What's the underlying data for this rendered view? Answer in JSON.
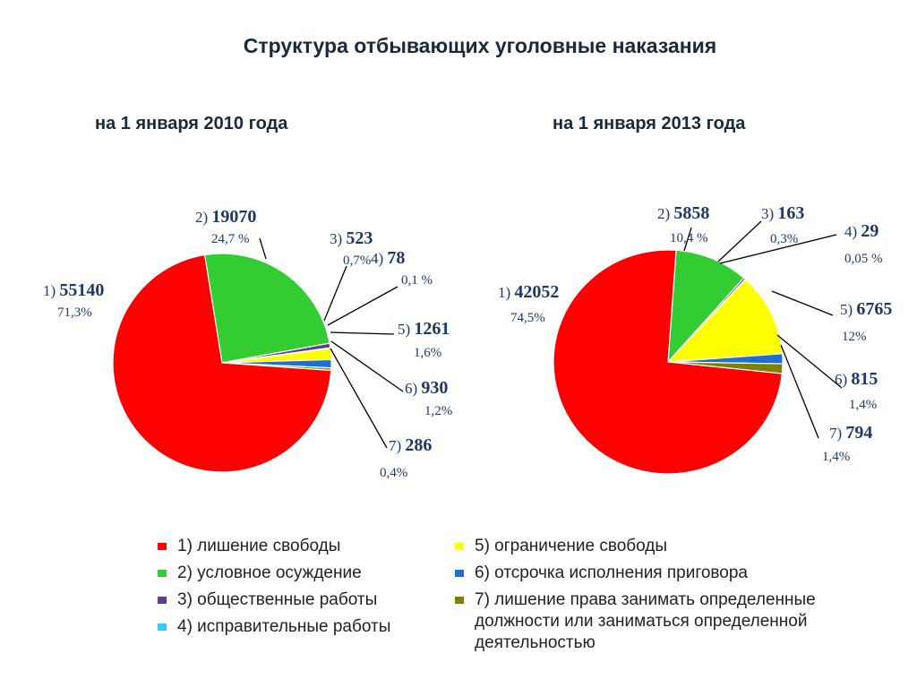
{
  "title": "Структура отбывающих уголовные наказания",
  "chart_data": [
    {
      "type": "pie",
      "title": "на 1 января 2010 года",
      "slices": [
        {
          "index": 1,
          "label": "1)",
          "value": 55140,
          "value_text": "55140",
          "percent_text": "71,3%",
          "color": "#ff0000"
        },
        {
          "index": 2,
          "label": "2)",
          "value": 19070,
          "value_text": "19070",
          "percent_text": "24,7 %",
          "color": "#33cc33"
        },
        {
          "index": 3,
          "label": "3)",
          "value": 523,
          "value_text": "523",
          "percent_text": "0,7%",
          "color": "#5b3f8c"
        },
        {
          "index": 4,
          "label": "4)",
          "value": 78,
          "value_text": "78",
          "percent_text": "0,1 %",
          "color": "#33ccff"
        },
        {
          "index": 5,
          "label": "5)",
          "value": 1261,
          "value_text": "1261",
          "percent_text": "1,6%",
          "color": "#ffff00"
        },
        {
          "index": 6,
          "label": "6)",
          "value": 930,
          "value_text": "930",
          "percent_text": "1,2%",
          "color": "#1f6fd1"
        },
        {
          "index": 7,
          "label": "7)",
          "value": 286,
          "value_text": "286",
          "percent_text": "0,4%",
          "color": "#77a300"
        }
      ]
    },
    {
      "type": "pie",
      "title": "на 1 января 2013 года",
      "slices": [
        {
          "index": 1,
          "label": "1)",
          "value": 42052,
          "value_text": "42052",
          "percent_text": "74,5%",
          "color": "#ff0000"
        },
        {
          "index": 2,
          "label": "2)",
          "value": 5858,
          "value_text": "5858",
          "percent_text": "10,4 %",
          "color": "#33cc33"
        },
        {
          "index": 3,
          "label": "3)",
          "value": 163,
          "value_text": "163",
          "percent_text": "0,3%",
          "color": "#5b3f8c"
        },
        {
          "index": 4,
          "label": "4)",
          "value": 29,
          "value_text": "29",
          "percent_text": "0,05 %",
          "color": "#33ccff"
        },
        {
          "index": 5,
          "label": "5)",
          "value": 6765,
          "value_text": "6765",
          "percent_text": "12%",
          "color": "#ffff00"
        },
        {
          "index": 6,
          "label": "6)",
          "value": 815,
          "value_text": "815",
          "percent_text": "1,4%",
          "color": "#1f6fd1"
        },
        {
          "index": 7,
          "label": "7)",
          "value": 794,
          "value_text": "794",
          "percent_text": "1,4%",
          "color": "#808000"
        }
      ]
    }
  ],
  "legend": {
    "left": [
      {
        "text": "1) лишение свободы",
        "color": "#ff0000"
      },
      {
        "text": "2) условное осуждение",
        "color": "#33cc33"
      },
      {
        "text": "3) общественные работы",
        "color": "#5b3f8c"
      },
      {
        "text": "4) исправительные работы",
        "color": "#33ccff"
      }
    ],
    "right": [
      {
        "text": "5) ограничение свободы",
        "color": "#ffff00"
      },
      {
        "text": "6) отсрочка исполнения приговора",
        "color": "#1f6fd1"
      },
      {
        "text": "7) лишение права занимать определенные должности или заниматься определенной деятельностью",
        "color": "#808000"
      }
    ]
  }
}
